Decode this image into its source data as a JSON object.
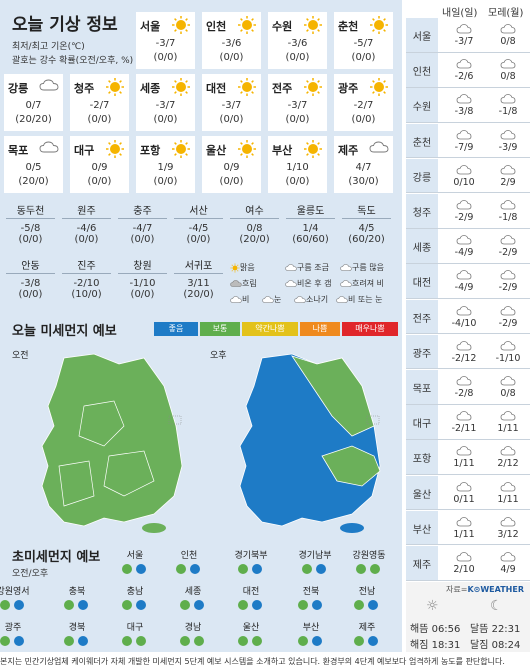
{
  "header": {
    "title": "오늘 기상 정보",
    "note1": "최저/최고 기온(℃)",
    "note2": "괄호는 강수 확률(오전/오후, %)"
  },
  "cities_main": [
    {
      "name": "서울",
      "icon": "sun-icon",
      "temp": "-3/7",
      "pop": "(0/0)"
    },
    {
      "name": "인천",
      "icon": "sun-icon",
      "temp": "-3/6",
      "pop": "(0/0)"
    },
    {
      "name": "수원",
      "icon": "sun-icon",
      "temp": "-3/6",
      "pop": "(0/0)"
    },
    {
      "name": "춘천",
      "icon": "sun-icon",
      "temp": "-5/7",
      "pop": "(0/0)"
    },
    {
      "name": "강릉",
      "icon": "cloud-icon",
      "temp": "0/7",
      "pop": "(20/20)"
    },
    {
      "name": "청주",
      "icon": "sun-icon",
      "temp": "-2/7",
      "pop": "(0/0)"
    },
    {
      "name": "세종",
      "icon": "sun-icon",
      "temp": "-3/7",
      "pop": "(0/0)"
    },
    {
      "name": "대전",
      "icon": "sun-icon",
      "temp": "-3/7",
      "pop": "(0/0)"
    },
    {
      "name": "전주",
      "icon": "sun-icon",
      "temp": "-3/7",
      "pop": "(0/0)"
    },
    {
      "name": "광주",
      "icon": "sun-icon",
      "temp": "-2/7",
      "pop": "(0/0)"
    },
    {
      "name": "목포",
      "icon": "cloud-icon",
      "temp": "0/5",
      "pop": "(20/0)"
    },
    {
      "name": "대구",
      "icon": "sun-icon",
      "temp": "0/9",
      "pop": "(0/0)"
    },
    {
      "name": "포항",
      "icon": "sun-icon",
      "temp": "1/9",
      "pop": "(0/0)"
    },
    {
      "name": "울산",
      "icon": "sun-icon",
      "temp": "0/9",
      "pop": "(0/0)"
    },
    {
      "name": "부산",
      "icon": "sun-icon",
      "temp": "1/10",
      "pop": "(0/0)"
    },
    {
      "name": "제주",
      "icon": "cloud-icon",
      "temp": "4/7",
      "pop": "(30/0)"
    }
  ],
  "cities_small1": [
    {
      "name": "동두천",
      "temp": "-5/8",
      "pop": "(0/0)"
    },
    {
      "name": "원주",
      "temp": "-4/6",
      "pop": "(0/0)"
    },
    {
      "name": "충주",
      "temp": "-4/7",
      "pop": "(0/0)"
    },
    {
      "name": "서산",
      "temp": "-4/5",
      "pop": "(0/0)"
    },
    {
      "name": "여수",
      "temp": "0/8",
      "pop": "(20/0)"
    },
    {
      "name": "울릉도",
      "temp": "1/4",
      "pop": "(60/60)"
    },
    {
      "name": "독도",
      "temp": "4/5",
      "pop": "(60/20)"
    }
  ],
  "cities_small2": [
    {
      "name": "안동",
      "temp": "-3/8",
      "pop": "(0/0)"
    },
    {
      "name": "진주",
      "temp": "-2/10",
      "pop": "(10/0)"
    },
    {
      "name": "창원",
      "temp": "-1/10",
      "pop": "(0/0)"
    },
    {
      "name": "서귀포",
      "temp": "3/11",
      "pop": "(20/0)"
    }
  ],
  "weather_legend": [
    "맑음",
    "구름 조금",
    "구름 많음",
    "흐림",
    "비온 후 갬",
    "흐려져 비",
    "비",
    "눈",
    "소나기",
    "비 또는 눈"
  ],
  "dust": {
    "title": "오늘 미세먼지 예보",
    "grades": [
      {
        "label": "좋음",
        "color": "#1e7bc6"
      },
      {
        "label": "보통",
        "color": "#5fae4c"
      },
      {
        "label": "약간나쁨",
        "color": "#e3c21a"
      },
      {
        "label": "나쁨",
        "color": "#ef8a1e"
      },
      {
        "label": "매우나쁨",
        "color": "#e0262a"
      }
    ],
    "am_label": "오전",
    "pm_label": "오후"
  },
  "fine_dust": {
    "title": "초미세먼지 예보",
    "subtitle": "오전/오후",
    "regions": [
      {
        "name": "서울",
        "am": "#5fae4c",
        "pm": "#1e7bc6"
      },
      {
        "name": "인천",
        "am": "#5fae4c",
        "pm": "#1e7bc6"
      },
      {
        "name": "경기북부",
        "am": "#5fae4c",
        "pm": "#1e7bc6"
      },
      {
        "name": "경기남부",
        "am": "#5fae4c",
        "pm": "#1e7bc6"
      },
      {
        "name": "강원영동",
        "am": "#5fae4c",
        "pm": "#5fae4c"
      },
      {
        "name": "강원영서",
        "am": "#5fae4c",
        "pm": "#1e7bc6"
      },
      {
        "name": "충북",
        "am": "#5fae4c",
        "pm": "#1e7bc6"
      },
      {
        "name": "충남",
        "am": "#5fae4c",
        "pm": "#1e7bc6"
      },
      {
        "name": "세종",
        "am": "#5fae4c",
        "pm": "#1e7bc6"
      },
      {
        "name": "대전",
        "am": "#5fae4c",
        "pm": "#1e7bc6"
      },
      {
        "name": "전북",
        "am": "#5fae4c",
        "pm": "#1e7bc6"
      },
      {
        "name": "전남",
        "am": "#5fae4c",
        "pm": "#1e7bc6"
      },
      {
        "name": "광주",
        "am": "#5fae4c",
        "pm": "#1e7bc6"
      },
      {
        "name": "경북",
        "am": "#5fae4c",
        "pm": "#1e7bc6"
      },
      {
        "name": "대구",
        "am": "#5fae4c",
        "pm": "#5fae4c"
      },
      {
        "name": "경남",
        "am": "#5fae4c",
        "pm": "#5fae4c"
      },
      {
        "name": "울산",
        "am": "#5fae4c",
        "pm": "#5fae4c"
      },
      {
        "name": "부산",
        "am": "#5fae4c",
        "pm": "#1e7bc6"
      },
      {
        "name": "제주",
        "am": "#5fae4c",
        "pm": "#1e7bc6"
      }
    ]
  },
  "forecast": {
    "col1": "내일(일)",
    "col2": "모레(월)",
    "rows": [
      {
        "city": "서울",
        "d1": "-3/7",
        "d2": "0/8"
      },
      {
        "city": "인천",
        "d1": "-2/6",
        "d2": "0/8"
      },
      {
        "city": "수원",
        "d1": "-3/8",
        "d2": "-1/8"
      },
      {
        "city": "춘천",
        "d1": "-7/9",
        "d2": "-3/9"
      },
      {
        "city": "강릉",
        "d1": "0/10",
        "d2": "2/9"
      },
      {
        "city": "청주",
        "d1": "-2/9",
        "d2": "-1/8"
      },
      {
        "city": "세종",
        "d1": "-4/9",
        "d2": "-2/9"
      },
      {
        "city": "대전",
        "d1": "-4/9",
        "d2": "-2/9"
      },
      {
        "city": "전주",
        "d1": "-4/10",
        "d2": "-2/9"
      },
      {
        "city": "광주",
        "d1": "-2/12",
        "d2": "-1/10"
      },
      {
        "city": "목포",
        "d1": "-2/8",
        "d2": "0/8"
      },
      {
        "city": "대구",
        "d1": "-2/11",
        "d2": "1/11"
      },
      {
        "city": "포항",
        "d1": "1/11",
        "d2": "2/12"
      },
      {
        "city": "울산",
        "d1": "0/11",
        "d2": "1/11"
      },
      {
        "city": "부산",
        "d1": "1/11",
        "d2": "3/12"
      },
      {
        "city": "제주",
        "d1": "2/10",
        "d2": "4/9"
      }
    ],
    "source": "자료=",
    "brand": "K⊙WEATHER",
    "sunrise": "해뜸 06:56",
    "sunset": "해짐 18:31",
    "moonrise": "달뜸 22:31",
    "moonset": "달짐 08:24"
  },
  "footer": "본지는 민간기상업체 케이웨더가 자체 개발한 미세먼지 5단계 예보 시스템을 소개하고 있습니다. 환경부의 4단계 예보보다 엄격하게 농도를 판단합니다."
}
